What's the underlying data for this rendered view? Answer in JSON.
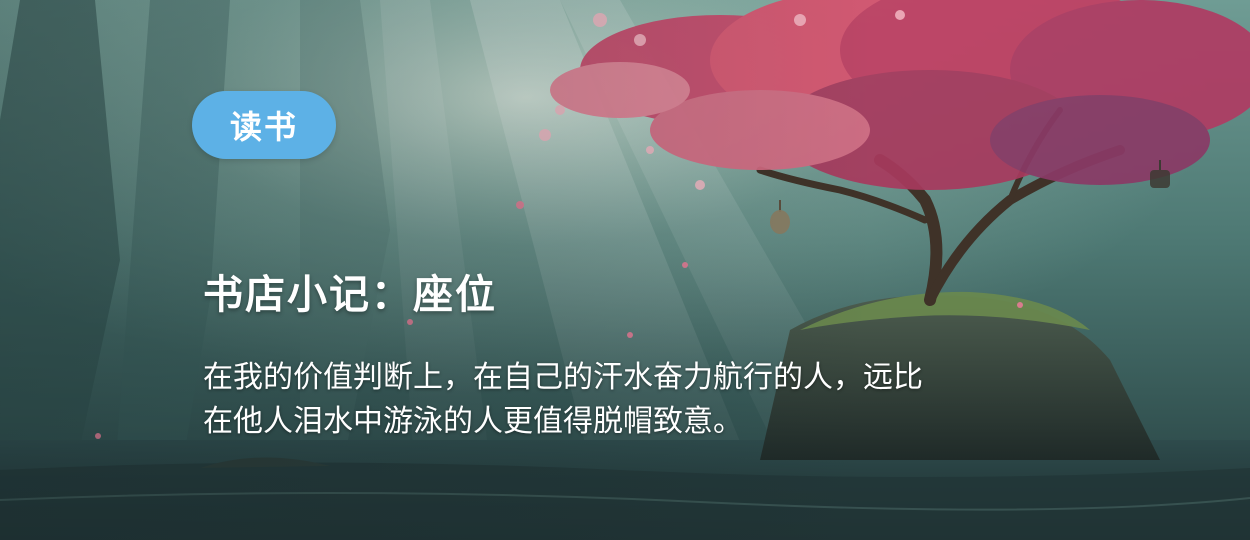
{
  "banner": {
    "category_tag": "读书",
    "title": "书店小记：座位",
    "quote_lines": [
      "在我的价值判断上，在自己的汗水奋力航行的人，远比",
      "在他人泪水中游泳的人更值得脱帽致意。"
    ]
  },
  "colors": {
    "tag_background": "#5db1e6",
    "text": "#ffffff",
    "blossom": "#d9536f",
    "mist": "#9fc2b8"
  }
}
